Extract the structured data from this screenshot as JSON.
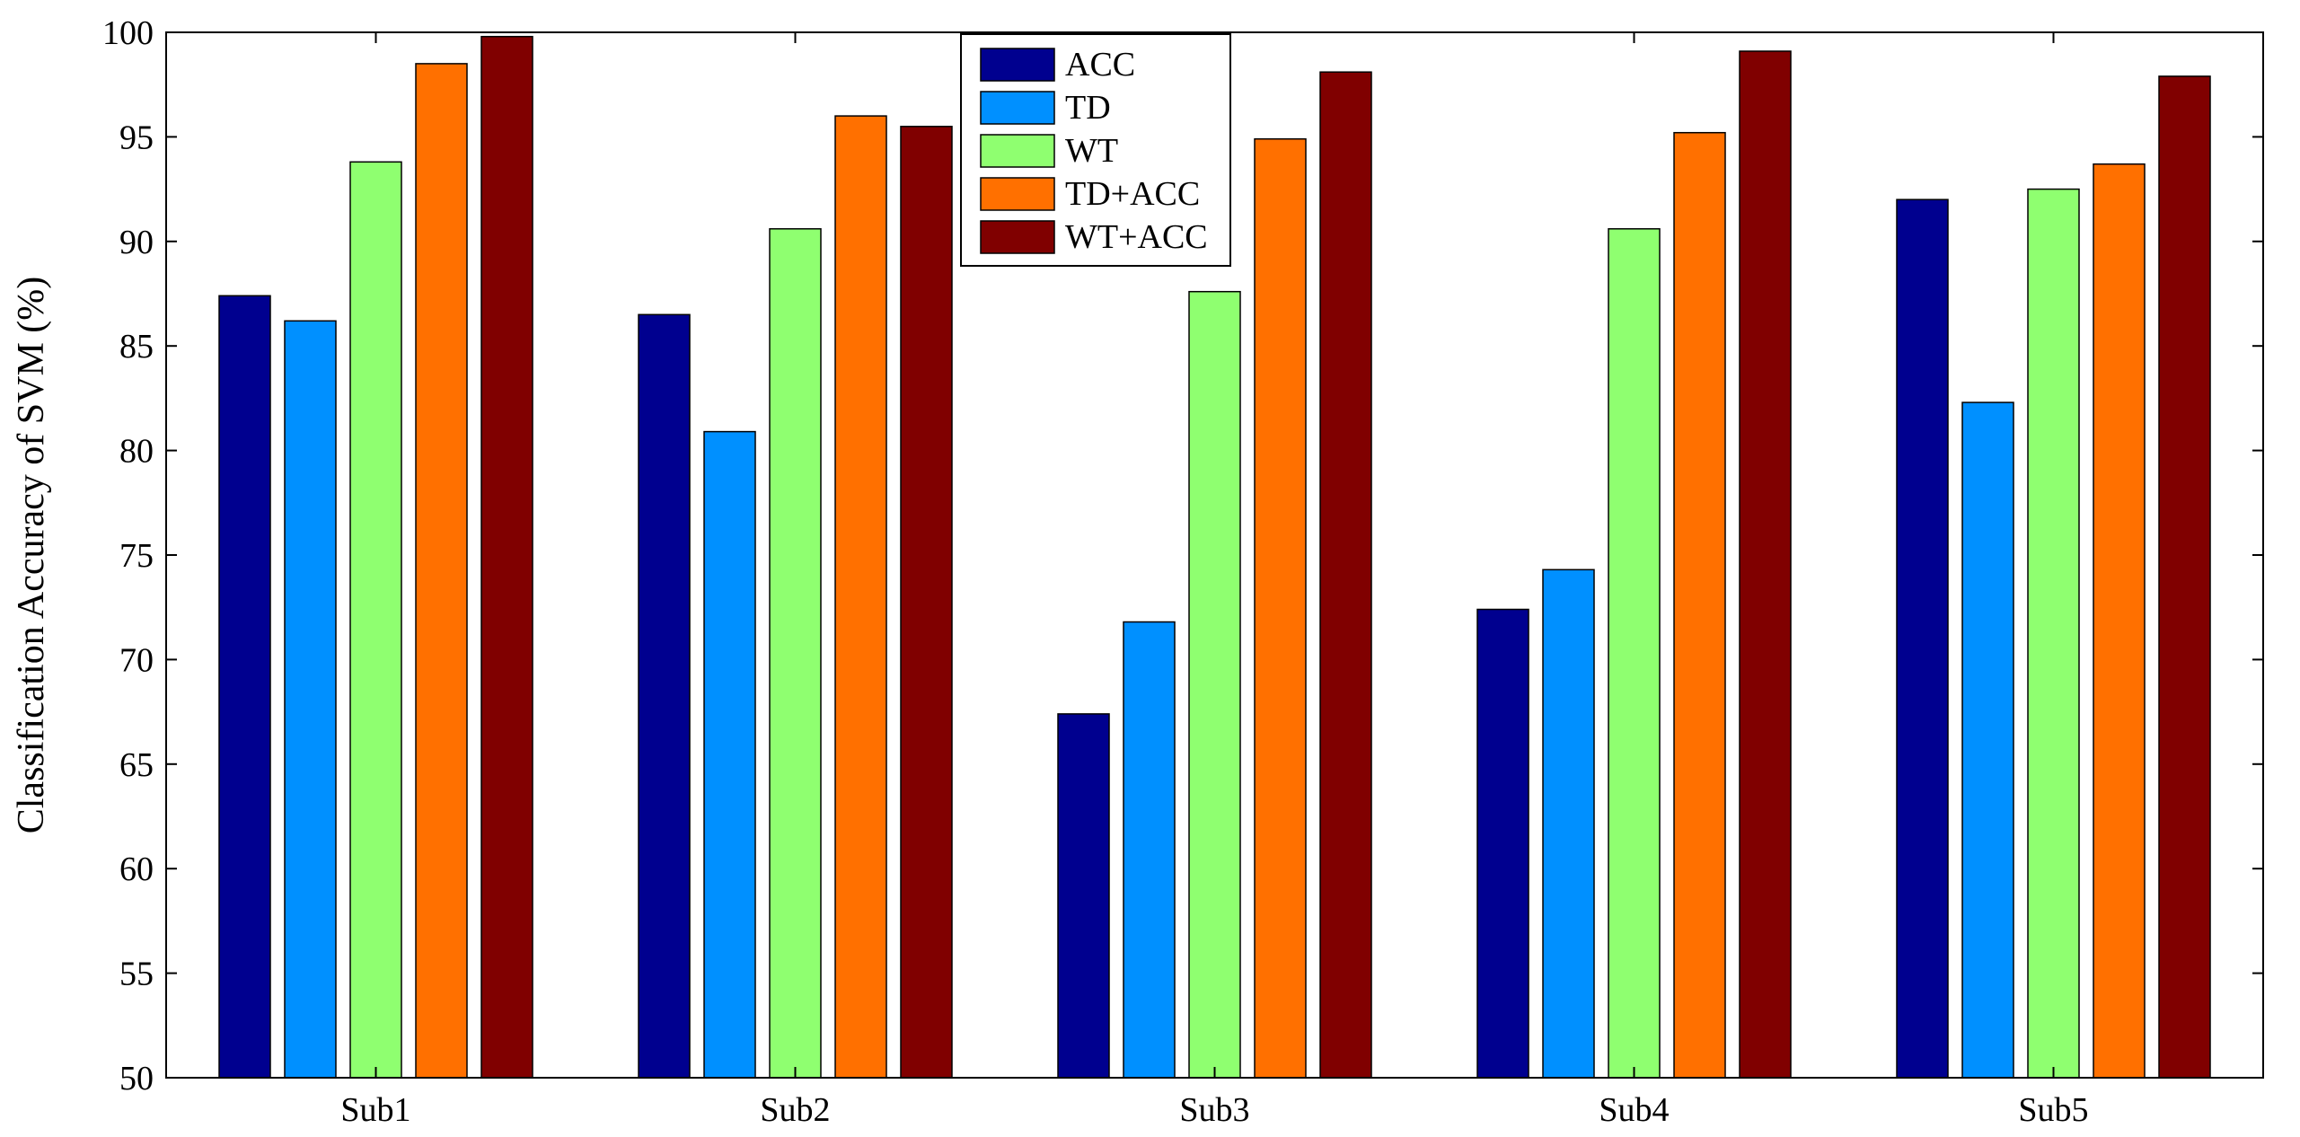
{
  "chart_data": {
    "type": "bar",
    "title": "",
    "xlabel": "",
    "ylabel": "Classification Accuracy of SVM (%)",
    "ylim": [
      50,
      100
    ],
    "yticks": [
      50,
      55,
      60,
      65,
      70,
      75,
      80,
      85,
      90,
      95,
      100
    ],
    "grid": false,
    "legend_position": "top-center",
    "categories": [
      "Sub1",
      "Sub2",
      "Sub3",
      "Sub4",
      "Sub5"
    ],
    "series": [
      {
        "name": "ACC",
        "color": "#00008F",
        "values": [
          87.4,
          86.5,
          67.4,
          72.4,
          92.0
        ]
      },
      {
        "name": "TD",
        "color": "#0090FF",
        "values": [
          86.2,
          80.9,
          71.8,
          74.3,
          82.3
        ]
      },
      {
        "name": "WT",
        "color": "#8FFF70",
        "values": [
          93.8,
          90.6,
          87.6,
          90.6,
          92.5
        ]
      },
      {
        "name": "TD+ACC",
        "color": "#FF7000",
        "values": [
          98.5,
          96.0,
          94.9,
          95.2,
          93.7
        ]
      },
      {
        "name": "WT+ACC",
        "color": "#800000",
        "values": [
          99.8,
          95.5,
          98.1,
          99.1,
          97.9
        ]
      }
    ]
  }
}
